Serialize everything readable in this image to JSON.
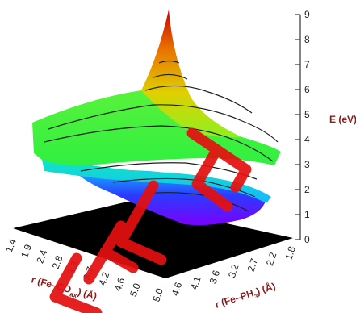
{
  "chart_data": {
    "type": "surface",
    "z_axis": {
      "label": "E (eV)",
      "range": [
        0,
        9
      ],
      "ticks": [
        "0",
        "1",
        "2",
        "3",
        "4",
        "5",
        "6",
        "7",
        "8",
        "9"
      ]
    },
    "x_axis": {
      "label_parts": [
        "r (Fe–CO",
        "ax",
        ") (Å)"
      ],
      "range": [
        1.4,
        5.0
      ],
      "ticks": [
        "1.4",
        "1.9",
        "2.4",
        "2.8",
        "3.3",
        "3.7",
        "4.2",
        "4.6",
        "5.0"
      ]
    },
    "y_axis": {
      "label_parts": [
        "r (Fe–PH",
        "3",
        ") (Å)"
      ],
      "range": [
        1.8,
        5.0
      ],
      "ticks": [
        "1.8",
        "2.2",
        "2.7",
        "3.2",
        "3.6",
        "4.1",
        "4.6",
        "5.0"
      ]
    },
    "colormap": [
      "#7a00ff",
      "#2a3cff",
      "#15b7ff",
      "#11e7c0",
      "#30f040",
      "#8ef020",
      "#e0d000",
      "#e87000",
      "#c80000"
    ],
    "floor_color": "#000000",
    "contour_color": "#1e1e1e",
    "watermark_color": "#e41010"
  }
}
